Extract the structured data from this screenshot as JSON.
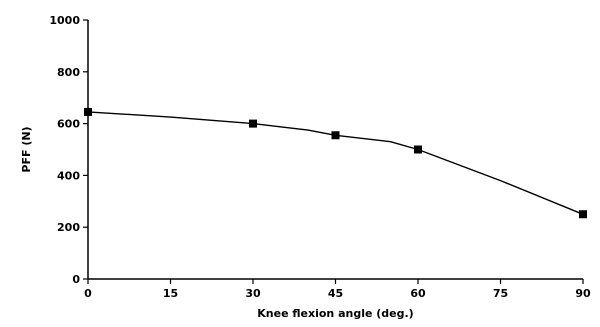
{
  "chart_data": {
    "type": "line",
    "title": "",
    "xlabel": "Knee flexion angle (deg.)",
    "ylabel": "PFF (N)",
    "xlim": [
      0,
      90
    ],
    "ylim": [
      0,
      1000
    ],
    "x_ticks": [
      "0",
      "15",
      "30",
      "45",
      "60",
      "75",
      "90"
    ],
    "y_ticks": [
      "0",
      "200",
      "400",
      "600",
      "800",
      "1000"
    ],
    "grid": false,
    "legend": "none",
    "series": [
      {
        "x": [
          0,
          30,
          45,
          60,
          90
        ],
        "values": [
          645,
          600,
          555,
          500,
          250
        ],
        "curve_points": [
          [
            0,
            645
          ],
          [
            15,
            625
          ],
          [
            30,
            600
          ],
          [
            40,
            575
          ],
          [
            45,
            555
          ],
          [
            55,
            530
          ],
          [
            60,
            500
          ],
          [
            75,
            380
          ],
          [
            90,
            250
          ]
        ],
        "color": "#000000",
        "marker": "square"
      }
    ]
  }
}
